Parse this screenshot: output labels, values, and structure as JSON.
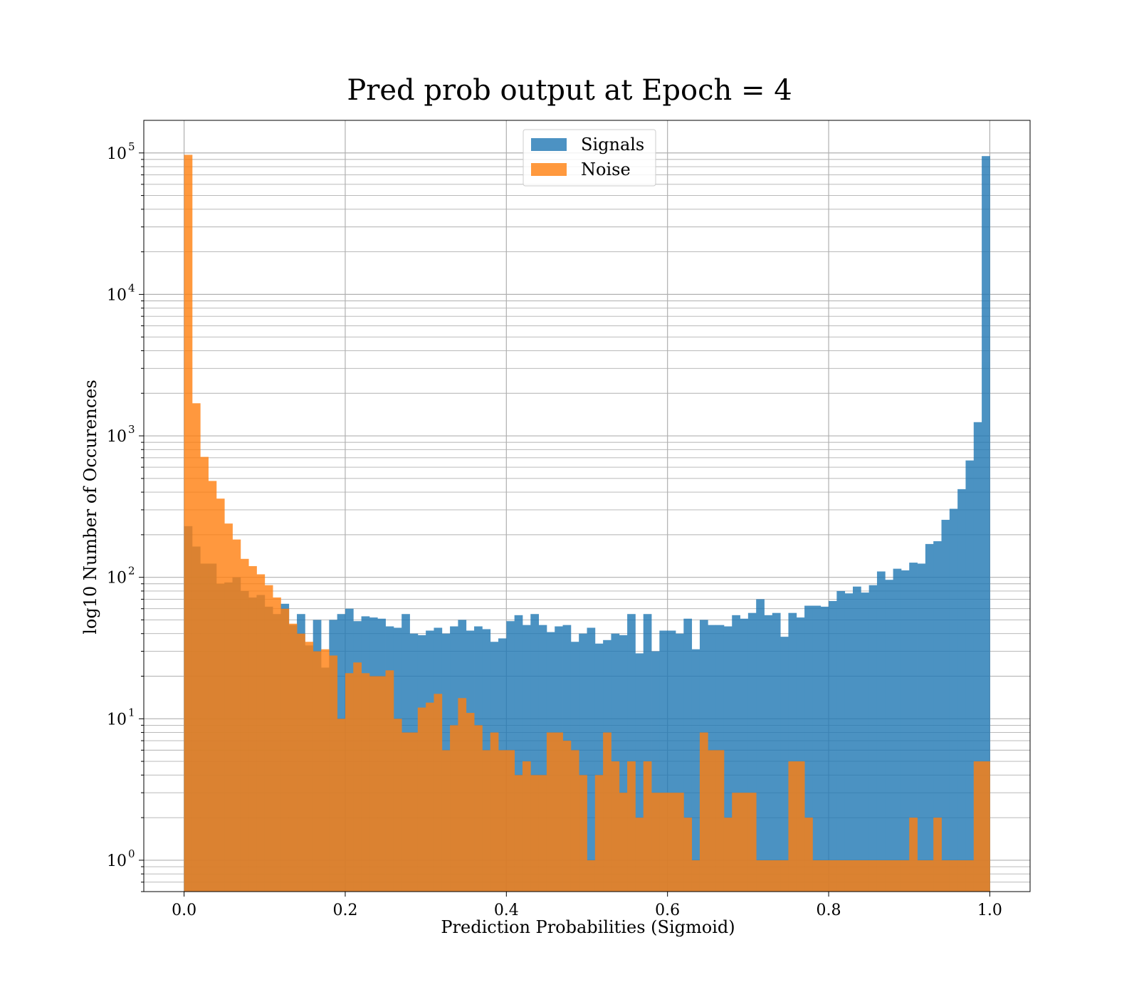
{
  "chart_data": {
    "type": "bar",
    "title": "Pred prob output at Epoch = 4",
    "xlabel": "Prediction Probabilities (Sigmoid)",
    "ylabel": "log10 Number of Occurences",
    "yscale": "log",
    "xlim": [
      -0.05,
      1.05
    ],
    "ylim": [
      0.6,
      170000
    ],
    "grid": true,
    "legend": "top-center",
    "bins": 100,
    "bin_range": [
      0,
      1
    ],
    "xticks": [
      "0.0",
      "0.2",
      "0.4",
      "0.6",
      "0.8",
      "1.0"
    ],
    "xtick_values": [
      0,
      0.2,
      0.4,
      0.6,
      0.8,
      1.0
    ],
    "ytick_exponents": [
      "0",
      "1",
      "2",
      "3",
      "4",
      "5"
    ],
    "ytick_base": "10",
    "series": [
      {
        "name": "Signals",
        "color": "#1f77b4",
        "values": [
          230,
          165,
          125,
          125,
          90,
          92,
          100,
          80,
          72,
          75,
          62,
          55,
          65,
          46,
          55,
          33,
          50,
          23,
          50,
          55,
          60,
          49,
          53,
          52,
          51,
          45,
          44,
          55,
          40,
          39,
          42,
          44,
          40,
          45,
          50,
          42,
          45,
          43,
          35,
          37,
          49,
          54,
          46,
          55,
          46,
          41,
          45,
          46,
          35,
          40,
          44,
          34,
          36,
          40,
          39,
          55,
          29,
          55,
          30,
          42,
          42,
          40,
          51,
          31,
          50,
          46,
          46,
          45,
          54,
          51,
          56,
          70,
          54,
          56,
          38,
          56,
          52,
          63,
          63,
          62,
          68,
          80,
          77,
          86,
          78,
          88,
          110,
          96,
          115,
          112,
          127,
          125,
          172,
          180,
          255,
          305,
          420,
          670,
          1250,
          95000
        ]
      },
      {
        "name": "Noise",
        "color": "#ff7f0e",
        "values": [
          97000,
          1700,
          710,
          480,
          360,
          240,
          185,
          135,
          120,
          105,
          88,
          72,
          60,
          47,
          40,
          35,
          30,
          31,
          28,
          10,
          21,
          25,
          21,
          20,
          20,
          22,
          10,
          8,
          8,
          12,
          13,
          15,
          6,
          9,
          14,
          11,
          9,
          6,
          8,
          6,
          6,
          4,
          5,
          4,
          4,
          8,
          8,
          7,
          6,
          4,
          1,
          4,
          8,
          5,
          3,
          5,
          2,
          5,
          3,
          3,
          3,
          3,
          2,
          1,
          8,
          6,
          6,
          2,
          3,
          3,
          3,
          1,
          1,
          1,
          1,
          5,
          5,
          2,
          1,
          1,
          1,
          1,
          1,
          1,
          1,
          1,
          1,
          1,
          1,
          1,
          2,
          1,
          1,
          2,
          1,
          1,
          1,
          1,
          5,
          5
        ]
      }
    ]
  }
}
